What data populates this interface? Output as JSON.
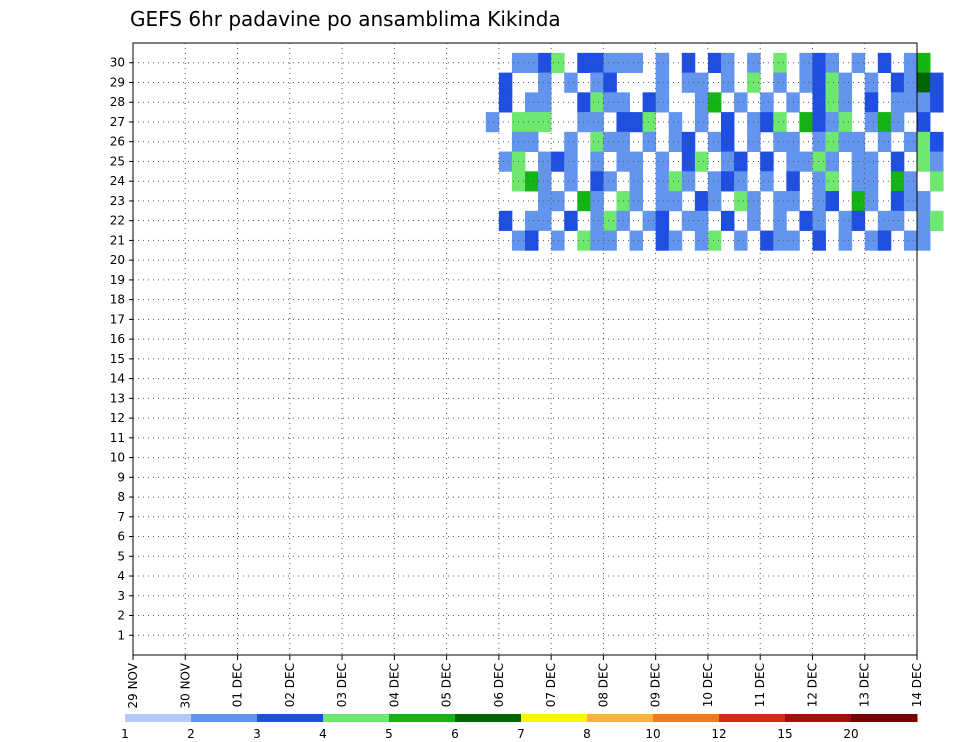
{
  "chart_data": {
    "type": "heatmap",
    "title": "GEFS 6hr padavine po ansamblima Kikinda",
    "xlabel": "",
    "ylabel": "",
    "x_tick_labels": [
      "29 NOV",
      "30 NOV",
      "01 DEC",
      "02 DEC",
      "03 DEC",
      "04 DEC",
      "05 DEC",
      "06 DEC",
      "07 DEC",
      "08 DEC",
      "09 DEC",
      "10 DEC",
      "11 DEC",
      "12 DEC",
      "13 DEC",
      "14 DEC"
    ],
    "y_range": [
      1,
      30
    ],
    "y_tick_labels": [
      "30",
      "29",
      "28",
      "27",
      "26",
      "25",
      "24",
      "23",
      "22",
      "21",
      "20",
      "19",
      "18",
      "17",
      "16",
      "15",
      "14",
      "13",
      "12",
      "11",
      "10",
      "9",
      "8",
      "7",
      "6",
      "5",
      "4",
      "3",
      "2",
      "1"
    ],
    "x_unit": "6-hour steps (4 per day)",
    "grid": true,
    "colorbar": {
      "tick_labels": [
        "1",
        "2",
        "3",
        "4",
        "5",
        "6",
        "7",
        "8",
        "10",
        "12",
        "15",
        "20"
      ],
      "colors": [
        "#b4c8f8",
        "#6495ee",
        "#1f4fe0",
        "#6ee86e",
        "#14b414",
        "#006400",
        "#f8f800",
        "#f8b432",
        "#f87814",
        "#dc2814",
        "#aa0a0a",
        "#780000"
      ]
    },
    "cells": [
      [
        29,
        30,
        1
      ],
      [
        30,
        30,
        1
      ],
      [
        31,
        30,
        2
      ],
      [
        32,
        30,
        3
      ],
      [
        34,
        30,
        2
      ],
      [
        35,
        30,
        2
      ],
      [
        36,
        30,
        1
      ],
      [
        37,
        30,
        1
      ],
      [
        38,
        30,
        1
      ],
      [
        40,
        30,
        1
      ],
      [
        42,
        30,
        2
      ],
      [
        44,
        30,
        2
      ],
      [
        45,
        30,
        1
      ],
      [
        47,
        30,
        1
      ],
      [
        49,
        30,
        3
      ],
      [
        51,
        30,
        1
      ],
      [
        52,
        30,
        2
      ],
      [
        53,
        30,
        1
      ],
      [
        55,
        30,
        1
      ],
      [
        57,
        30,
        2
      ],
      [
        59,
        30,
        1
      ],
      [
        60,
        30,
        4
      ],
      [
        28,
        29,
        2
      ],
      [
        31,
        29,
        1
      ],
      [
        33,
        29,
        1
      ],
      [
        35,
        29,
        1
      ],
      [
        36,
        29,
        2
      ],
      [
        40,
        29,
        1
      ],
      [
        42,
        29,
        1
      ],
      [
        43,
        29,
        1
      ],
      [
        45,
        29,
        1
      ],
      [
        47,
        29,
        3
      ],
      [
        49,
        29,
        1
      ],
      [
        51,
        29,
        1
      ],
      [
        52,
        29,
        2
      ],
      [
        53,
        29,
        3
      ],
      [
        54,
        29,
        1
      ],
      [
        56,
        29,
        1
      ],
      [
        58,
        29,
        2
      ],
      [
        59,
        29,
        1
      ],
      [
        60,
        29,
        5
      ],
      [
        61,
        29,
        2
      ],
      [
        28,
        28,
        2
      ],
      [
        30,
        28,
        1
      ],
      [
        31,
        28,
        1
      ],
      [
        34,
        28,
        2
      ],
      [
        35,
        28,
        3
      ],
      [
        36,
        28,
        1
      ],
      [
        37,
        28,
        1
      ],
      [
        39,
        28,
        2
      ],
      [
        40,
        28,
        1
      ],
      [
        43,
        28,
        1
      ],
      [
        44,
        28,
        4
      ],
      [
        46,
        28,
        1
      ],
      [
        48,
        28,
        1
      ],
      [
        50,
        28,
        1
      ],
      [
        52,
        28,
        2
      ],
      [
        53,
        28,
        3
      ],
      [
        54,
        28,
        1
      ],
      [
        56,
        28,
        2
      ],
      [
        58,
        28,
        1
      ],
      [
        59,
        28,
        1
      ],
      [
        60,
        28,
        1
      ],
      [
        61,
        28,
        2
      ],
      [
        27,
        27,
        1
      ],
      [
        29,
        27,
        3
      ],
      [
        30,
        27,
        3
      ],
      [
        31,
        27,
        3
      ],
      [
        34,
        27,
        1
      ],
      [
        35,
        27,
        1
      ],
      [
        37,
        27,
        2
      ],
      [
        38,
        27,
        2
      ],
      [
        39,
        27,
        3
      ],
      [
        41,
        27,
        1
      ],
      [
        43,
        27,
        1
      ],
      [
        45,
        27,
        2
      ],
      [
        47,
        27,
        1
      ],
      [
        48,
        27,
        2
      ],
      [
        49,
        27,
        3
      ],
      [
        51,
        27,
        4
      ],
      [
        52,
        27,
        2
      ],
      [
        53,
        27,
        1
      ],
      [
        54,
        27,
        3
      ],
      [
        56,
        27,
        1
      ],
      [
        57,
        27,
        4
      ],
      [
        58,
        27,
        1
      ],
      [
        60,
        27,
        2
      ],
      [
        29,
        26,
        1
      ],
      [
        30,
        26,
        1
      ],
      [
        33,
        26,
        1
      ],
      [
        35,
        26,
        3
      ],
      [
        36,
        26,
        1
      ],
      [
        37,
        26,
        1
      ],
      [
        39,
        26,
        1
      ],
      [
        41,
        26,
        1
      ],
      [
        42,
        26,
        2
      ],
      [
        44,
        26,
        1
      ],
      [
        45,
        26,
        2
      ],
      [
        47,
        26,
        1
      ],
      [
        49,
        26,
        1
      ],
      [
        50,
        26,
        1
      ],
      [
        52,
        26,
        1
      ],
      [
        53,
        26,
        3
      ],
      [
        54,
        26,
        1
      ],
      [
        55,
        26,
        1
      ],
      [
        57,
        26,
        1
      ],
      [
        59,
        26,
        1
      ],
      [
        60,
        26,
        3
      ],
      [
        61,
        26,
        2
      ],
      [
        28,
        25,
        1
      ],
      [
        29,
        25,
        3
      ],
      [
        31,
        25,
        1
      ],
      [
        32,
        25,
        2
      ],
      [
        33,
        25,
        1
      ],
      [
        35,
        25,
        1
      ],
      [
        37,
        25,
        1
      ],
      [
        38,
        25,
        1
      ],
      [
        40,
        25,
        1
      ],
      [
        42,
        25,
        2
      ],
      [
        43,
        25,
        3
      ],
      [
        45,
        25,
        1
      ],
      [
        46,
        25,
        2
      ],
      [
        48,
        25,
        2
      ],
      [
        50,
        25,
        1
      ],
      [
        51,
        25,
        1
      ],
      [
        52,
        25,
        3
      ],
      [
        53,
        25,
        1
      ],
      [
        55,
        25,
        1
      ],
      [
        56,
        25,
        1
      ],
      [
        58,
        25,
        2
      ],
      [
        60,
        25,
        3
      ],
      [
        61,
        25,
        1
      ],
      [
        29,
        24,
        3
      ],
      [
        30,
        24,
        4
      ],
      [
        31,
        24,
        1
      ],
      [
        33,
        24,
        1
      ],
      [
        35,
        24,
        2
      ],
      [
        36,
        24,
        1
      ],
      [
        38,
        24,
        1
      ],
      [
        40,
        24,
        1
      ],
      [
        41,
        24,
        3
      ],
      [
        42,
        24,
        1
      ],
      [
        44,
        24,
        1
      ],
      [
        45,
        24,
        2
      ],
      [
        46,
        24,
        1
      ],
      [
        48,
        24,
        1
      ],
      [
        50,
        24,
        2
      ],
      [
        52,
        24,
        1
      ],
      [
        53,
        24,
        3
      ],
      [
        55,
        24,
        1
      ],
      [
        56,
        24,
        1
      ],
      [
        58,
        24,
        4
      ],
      [
        59,
        24,
        1
      ],
      [
        61,
        24,
        3
      ],
      [
        31,
        23,
        1
      ],
      [
        32,
        23,
        1
      ],
      [
        34,
        23,
        4
      ],
      [
        35,
        23,
        1
      ],
      [
        37,
        23,
        3
      ],
      [
        38,
        23,
        1
      ],
      [
        40,
        23,
        1
      ],
      [
        41,
        23,
        1
      ],
      [
        43,
        23,
        2
      ],
      [
        44,
        23,
        1
      ],
      [
        46,
        23,
        3
      ],
      [
        47,
        23,
        1
      ],
      [
        49,
        23,
        1
      ],
      [
        50,
        23,
        1
      ],
      [
        52,
        23,
        1
      ],
      [
        53,
        23,
        2
      ],
      [
        55,
        23,
        4
      ],
      [
        56,
        23,
        1
      ],
      [
        58,
        23,
        2
      ],
      [
        59,
        23,
        1
      ],
      [
        60,
        23,
        1
      ],
      [
        28,
        22,
        2
      ],
      [
        30,
        22,
        1
      ],
      [
        31,
        22,
        1
      ],
      [
        33,
        22,
        2
      ],
      [
        35,
        22,
        1
      ],
      [
        36,
        22,
        3
      ],
      [
        37,
        22,
        1
      ],
      [
        39,
        22,
        1
      ],
      [
        40,
        22,
        2
      ],
      [
        42,
        22,
        1
      ],
      [
        43,
        22,
        1
      ],
      [
        45,
        22,
        2
      ],
      [
        47,
        22,
        1
      ],
      [
        49,
        22,
        1
      ],
      [
        51,
        22,
        2
      ],
      [
        52,
        22,
        1
      ],
      [
        54,
        22,
        1
      ],
      [
        55,
        22,
        2
      ],
      [
        57,
        22,
        1
      ],
      [
        58,
        22,
        1
      ],
      [
        60,
        22,
        1
      ],
      [
        61,
        22,
        3
      ],
      [
        29,
        21,
        1
      ],
      [
        30,
        21,
        2
      ],
      [
        32,
        21,
        1
      ],
      [
        34,
        21,
        3
      ],
      [
        35,
        21,
        1
      ],
      [
        36,
        21,
        1
      ],
      [
        38,
        21,
        1
      ],
      [
        40,
        21,
        2
      ],
      [
        41,
        21,
        1
      ],
      [
        43,
        21,
        1
      ],
      [
        44,
        21,
        3
      ],
      [
        46,
        21,
        1
      ],
      [
        48,
        21,
        2
      ],
      [
        49,
        21,
        1
      ],
      [
        50,
        21,
        1
      ],
      [
        52,
        21,
        2
      ],
      [
        54,
        21,
        1
      ],
      [
        56,
        21,
        1
      ],
      [
        57,
        21,
        2
      ],
      [
        59,
        21,
        1
      ],
      [
        60,
        21,
        1
      ]
    ]
  }
}
